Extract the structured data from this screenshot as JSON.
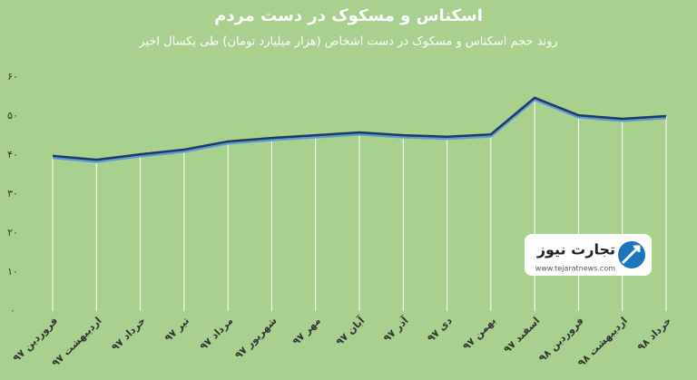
{
  "chart_data": {
    "type": "line",
    "title": "اسکناس و مسکوک در دست مردم",
    "subtitle": "روند حجم اسکناس و مسکوک در دست اشخاص (هزار میلیارد تومان) طی یکسال اخیر",
    "categories": [
      "فروردین ۹۷",
      "اردیبهشت ۹۷",
      "خرداد ۹۷",
      "تیر ۹۷",
      "مرداد ۹۷",
      "شهریور ۹۷",
      "مهر ۹۷",
      "آبان ۹۷",
      "آذر ۹۷",
      "دی ۹۷",
      "بهمن ۹۷",
      "اسفند ۹۷",
      "فروردین ۹۸",
      "اردیبهشت ۹۸",
      "خرداد ۹۸"
    ],
    "values": [
      39.8,
      38.8,
      40.2,
      41.4,
      43.5,
      44.4,
      45.1,
      45.8,
      45.1,
      44.7,
      45.3,
      54.7,
      50.2,
      49.3,
      50
    ],
    "color": "#1f3864",
    "ylim": [
      0,
      60
    ],
    "yticks": [
      {
        "value": 0,
        "label": "۰"
      },
      {
        "value": 10,
        "label": "۱۰"
      },
      {
        "value": 20,
        "label": "۲۰"
      },
      {
        "value": 30,
        "label": "۳۰"
      },
      {
        "value": 40,
        "label": "۴۰"
      },
      {
        "value": 50,
        "label": "۵۰"
      },
      {
        "value": 60,
        "label": "۶۰"
      }
    ],
    "grid": true
  },
  "logo": {
    "name": "تجارت نیوز",
    "url": "www.tejaratnews.com"
  }
}
